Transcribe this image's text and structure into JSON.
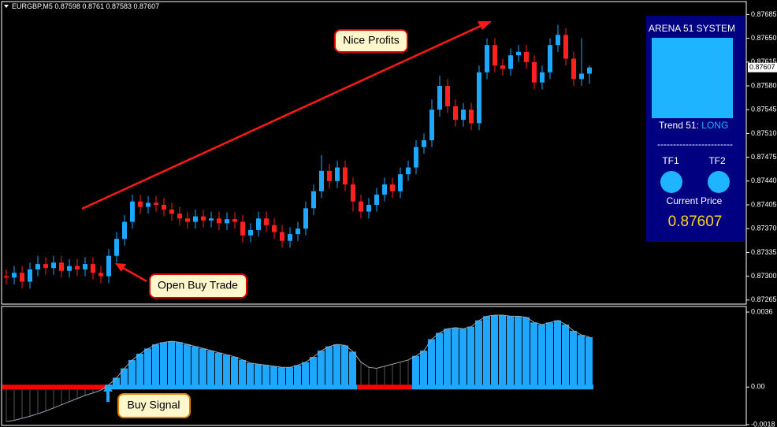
{
  "header": {
    "symbol": "EURGBP,M5"
  },
  "chart_data": [
    {
      "type": "candlestick",
      "up_color": "#1ea7ff",
      "down_color": "#ff2020",
      "ylim": [
        0.87259,
        0.87704
      ],
      "yticks": [
        0.87685,
        {
          "value": 0.8765,
          "label": "0.87650"
        },
        0.87615,
        {
          "value": 0.8758,
          "label": "0.87580"
        },
        0.87545,
        {
          "value": 0.8751,
          "label": "0.87510"
        },
        0.87475,
        {
          "value": 0.8744,
          "label": "0.87440"
        },
        0.87405,
        {
          "value": 0.8737,
          "label": "0.87370"
        },
        0.87335,
        {
          "value": 0.873,
          "label": "0.87300"
        },
        0.87265
      ],
      "open": [
        0.873,
        0.87298,
        0.87305,
        0.87292,
        0.8731,
        0.87318,
        0.87312,
        0.8732,
        0.87308,
        0.87315,
        0.8731,
        0.87318,
        0.87305,
        0.873,
        0.8733,
        0.87355,
        0.8738,
        0.8741,
        0.87402,
        0.87408,
        0.87405,
        0.87398,
        0.87392,
        0.87385,
        0.8738,
        0.87388,
        0.87382,
        0.87385,
        0.87378,
        0.87384,
        0.8738,
        0.8736,
        0.87368,
        0.87385,
        0.87375,
        0.87365,
        0.87352,
        0.87362,
        0.8737,
        0.874,
        0.87425,
        0.87455,
        0.8744,
        0.8746,
        0.87435,
        0.8741,
        0.87395,
        0.87405,
        0.8742,
        0.87435,
        0.87425,
        0.8745,
        0.8746,
        0.8749,
        0.875,
        0.87545,
        0.8758,
        0.8755,
        0.8753,
        0.87545,
        0.87525,
        0.876,
        0.8764,
        0.8761,
        0.87605,
        0.87625,
        0.8763,
        0.87615,
        0.87585,
        0.876,
        0.8764,
        0.87655,
        0.8762,
        0.8759,
        0.87598
      ],
      "high": [
        0.8731,
        0.87315,
        0.87315,
        0.8732,
        0.8733,
        0.87328,
        0.8733,
        0.8733,
        0.87325,
        0.87325,
        0.87328,
        0.87328,
        0.87315,
        0.8734,
        0.87365,
        0.8739,
        0.8742,
        0.8742,
        0.87418,
        0.87418,
        0.87415,
        0.87408,
        0.87402,
        0.87395,
        0.87398,
        0.87398,
        0.87395,
        0.87395,
        0.87394,
        0.87394,
        0.8739,
        0.87378,
        0.87395,
        0.87395,
        0.87385,
        0.87375,
        0.87372,
        0.8738,
        0.8741,
        0.87435,
        0.87478,
        0.87465,
        0.8747,
        0.8747,
        0.87445,
        0.8742,
        0.87415,
        0.8743,
        0.87445,
        0.87445,
        0.8746,
        0.8747,
        0.875,
        0.8751,
        0.8756,
        0.87595,
        0.8759,
        0.8756,
        0.87555,
        0.87555,
        0.8761,
        0.8765,
        0.8765,
        0.8762,
        0.87635,
        0.8764,
        0.8764,
        0.87625,
        0.8761,
        0.8765,
        0.8767,
        0.87665,
        0.8763,
        0.8765,
        0.8761
      ],
      "low": [
        0.87288,
        0.87288,
        0.87282,
        0.87282,
        0.873,
        0.87302,
        0.87302,
        0.87298,
        0.87298,
        0.873,
        0.873,
        0.87295,
        0.8729,
        0.8729,
        0.8732,
        0.87345,
        0.8737,
        0.87392,
        0.87392,
        0.87395,
        0.87388,
        0.87382,
        0.87375,
        0.8737,
        0.8737,
        0.87372,
        0.87372,
        0.87368,
        0.87368,
        0.8737,
        0.8735,
        0.8735,
        0.87358,
        0.87365,
        0.87355,
        0.87342,
        0.87342,
        0.87352,
        0.8736,
        0.8739,
        0.87415,
        0.8743,
        0.8743,
        0.87425,
        0.87395,
        0.87385,
        0.87385,
        0.87395,
        0.8741,
        0.87415,
        0.87415,
        0.8744,
        0.8745,
        0.8748,
        0.8749,
        0.87535,
        0.8754,
        0.8752,
        0.8752,
        0.87515,
        0.87515,
        0.8759,
        0.876,
        0.87595,
        0.87595,
        0.87615,
        0.87605,
        0.87575,
        0.87575,
        0.8759,
        0.8763,
        0.8761,
        0.8758,
        0.8758,
        0.87583
      ],
      "close": [
        0.87298,
        0.87305,
        0.87292,
        0.8731,
        0.87318,
        0.87312,
        0.8732,
        0.87308,
        0.87315,
        0.8731,
        0.87318,
        0.87305,
        0.873,
        0.8733,
        0.87355,
        0.8738,
        0.8741,
        0.87402,
        0.87408,
        0.87405,
        0.87398,
        0.87392,
        0.87385,
        0.8738,
        0.87388,
        0.87382,
        0.87385,
        0.87378,
        0.87384,
        0.8738,
        0.8736,
        0.87368,
        0.87385,
        0.87375,
        0.87365,
        0.87352,
        0.87362,
        0.8737,
        0.874,
        0.87425,
        0.87455,
        0.8744,
        0.8746,
        0.87435,
        0.8741,
        0.87395,
        0.87405,
        0.8742,
        0.87435,
        0.87425,
        0.8745,
        0.8746,
        0.8749,
        0.875,
        0.87545,
        0.8758,
        0.8755,
        0.8753,
        0.87545,
        0.87525,
        0.876,
        0.8764,
        0.8761,
        0.87605,
        0.87625,
        0.8763,
        0.87615,
        0.87585,
        0.876,
        0.8764,
        0.87655,
        0.8762,
        0.8759,
        0.87598,
        0.87607
      ]
    },
    {
      "type": "bar",
      "positive_color": "#1ea7ff",
      "line_color": "#9aa4ad",
      "ylim": [
        -0.00184,
        0.00383
      ],
      "yticks": [
        0.0036,
        {
          "value": 0,
          "label": "0.00"
        },
        -0.0018
      ],
      "values": [
        -0.00165,
        -0.0016,
        -0.0015,
        -0.0014,
        -0.00128,
        -0.00115,
        -0.001,
        -0.00085,
        -0.0007,
        -0.00055,
        -0.0004,
        -0.00028,
        -0.00015,
        0.0001,
        0.00045,
        0.0009,
        0.0013,
        0.0016,
        0.00185,
        0.00205,
        0.00215,
        0.0022,
        0.00215,
        0.00205,
        0.00195,
        0.00185,
        0.00175,
        0.00165,
        0.00155,
        0.00145,
        0.0013,
        0.00115,
        0.0011,
        0.00105,
        0.001,
        0.00095,
        0.00095,
        0.00105,
        0.0012,
        0.00145,
        0.00175,
        0.00195,
        0.00205,
        0.002,
        0.0017,
        0.0012,
        0.00095,
        0.0009,
        0.001,
        0.0011,
        0.0012,
        0.0013,
        0.0015,
        0.00175,
        0.0023,
        0.0026,
        0.0028,
        0.00285,
        0.0028,
        0.0029,
        0.0032,
        0.0034,
        0.00345,
        0.00345,
        0.0034,
        0.0034,
        0.00335,
        0.0031,
        0.003,
        0.0031,
        0.0032,
        0.003,
        0.0027,
        0.0025,
        0.0024
      ],
      "colors": [
        "#ff0000",
        "#ff0000",
        "#ff0000",
        "#ff0000",
        "#ff0000",
        "#ff0000",
        "#ff0000",
        "#ff0000",
        "#ff0000",
        "#ff0000",
        "#ff0000",
        "#ff0000",
        "#ff0000",
        "#1ea7ff",
        "#1ea7ff",
        "#1ea7ff",
        "#1ea7ff",
        "#1ea7ff",
        "#1ea7ff",
        "#1ea7ff",
        "#1ea7ff",
        "#1ea7ff",
        "#1ea7ff",
        "#1ea7ff",
        "#1ea7ff",
        "#1ea7ff",
        "#1ea7ff",
        "#1ea7ff",
        "#1ea7ff",
        "#1ea7ff",
        "#1ea7ff",
        "#1ea7ff",
        "#1ea7ff",
        "#1ea7ff",
        "#1ea7ff",
        "#1ea7ff",
        "#1ea7ff",
        "#1ea7ff",
        "#1ea7ff",
        "#1ea7ff",
        "#1ea7ff",
        "#1ea7ff",
        "#1ea7ff",
        "#1ea7ff",
        "#1ea7ff",
        "#ff0000",
        "#ff0000",
        "#ff0000",
        "#ff0000",
        "#ff0000",
        "#ff0000",
        "#ff0000",
        "#1ea7ff",
        "#1ea7ff",
        "#1ea7ff",
        "#1ea7ff",
        "#1ea7ff",
        "#1ea7ff",
        "#1ea7ff",
        "#1ea7ff",
        "#1ea7ff",
        "#1ea7ff",
        "#1ea7ff",
        "#1ea7ff",
        "#1ea7ff",
        "#1ea7ff",
        "#1ea7ff",
        "#1ea7ff",
        "#1ea7ff",
        "#1ea7ff",
        "#1ea7ff",
        "#1ea7ff",
        "#1ea7ff",
        "#1ea7ff",
        "#1ea7ff"
      ]
    }
  ],
  "annotations": {
    "profits": "Nice Profits",
    "open_trade": "Open Buy Trade",
    "buy_signal": "Buy Signal"
  },
  "panel": {
    "title": "ARENA 51 SYSTEM",
    "trend_label": "Trend 51:",
    "trend_value": "LONG",
    "separator": "------------------------",
    "tf1": "TF1",
    "tf2": "TF2",
    "price_label": "Current Price"
  }
}
